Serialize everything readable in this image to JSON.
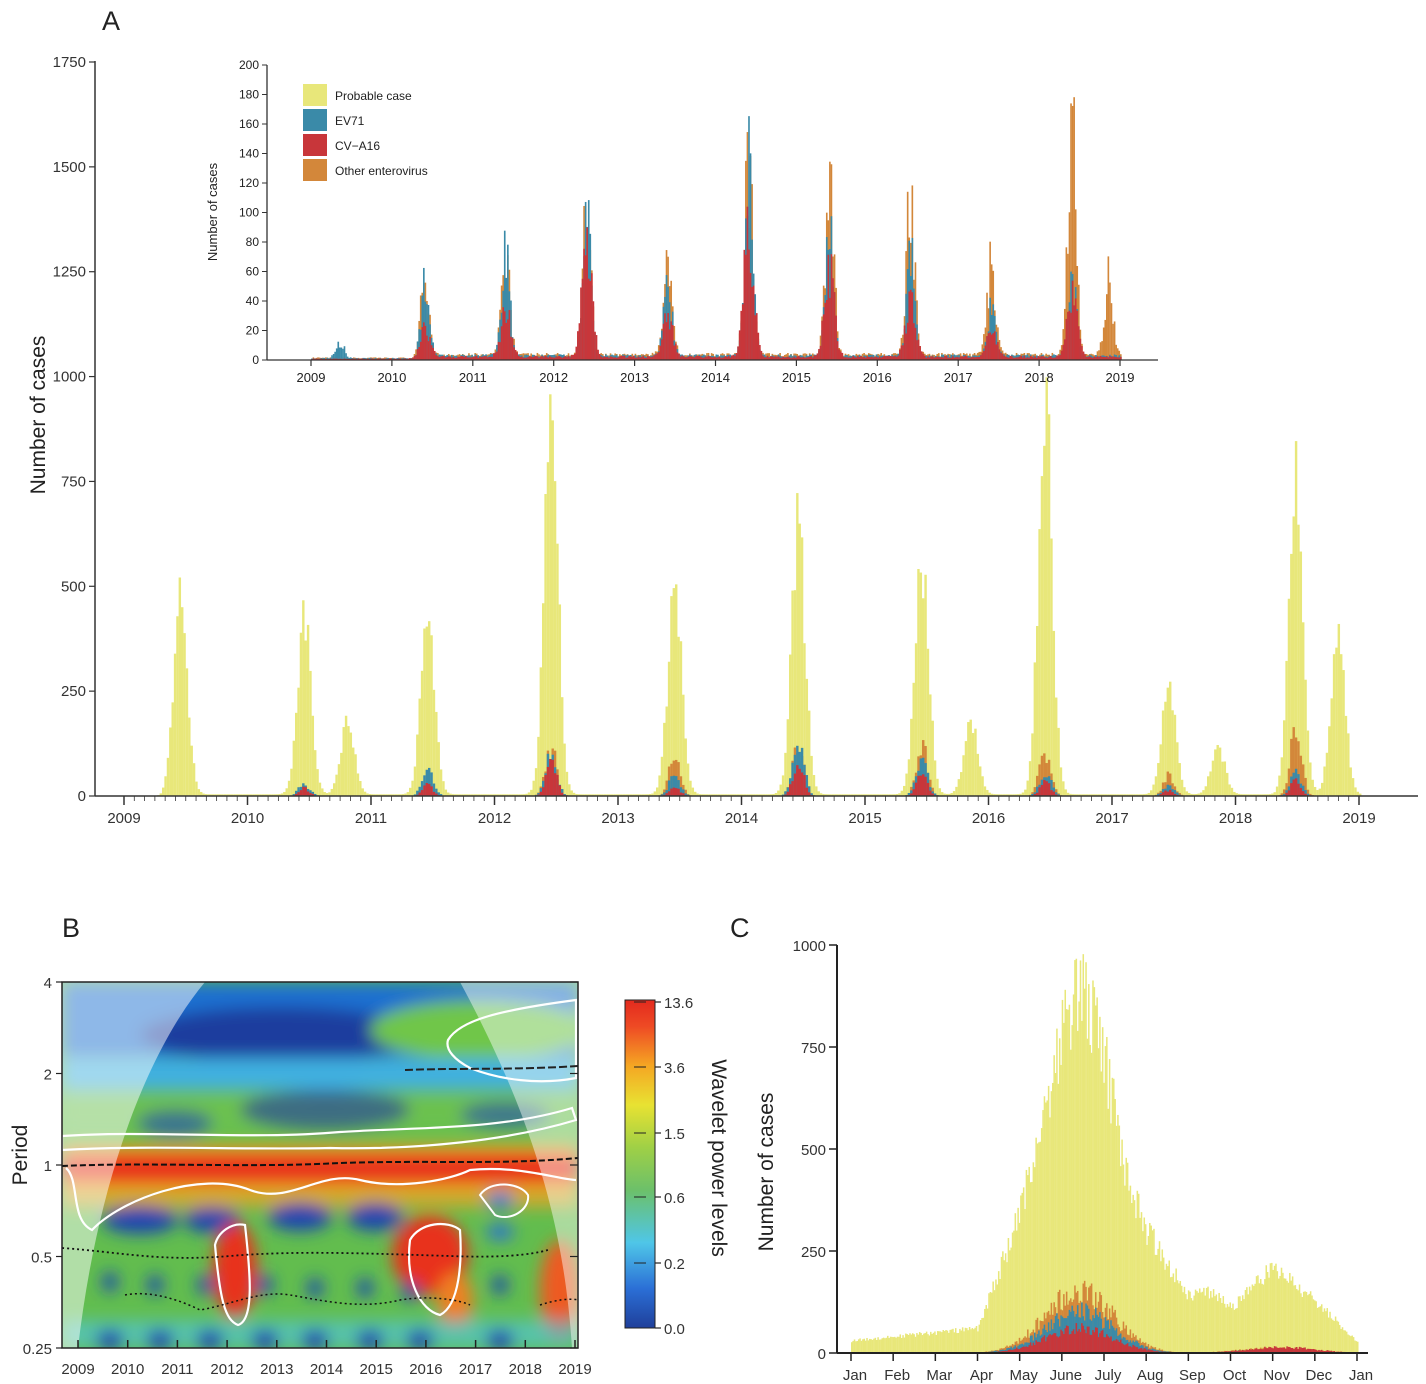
{
  "colors": {
    "probable": "#e8e77a",
    "ev71": "#3a8aa8",
    "cva16": "#c8363a",
    "other": "#d3873a"
  },
  "chart_data": [
    {
      "panel": "A",
      "type": "area",
      "xlabel": "",
      "ylabel": "Number of cases",
      "ylim": [
        0,
        1750
      ],
      "yticks": [
        0,
        250,
        500,
        750,
        1000,
        1250,
        1500,
        1750
      ],
      "xticks": [
        "2009",
        "2010",
        "2011",
        "2012",
        "2013",
        "2014",
        "2015",
        "2016",
        "2017",
        "2018",
        "2019"
      ],
      "series_peaks": [
        {
          "name": "Probable case",
          "peaks": [
            [
              2009.45,
              460
            ],
            [
              2010.45,
              420
            ],
            [
              2010.8,
              175
            ],
            [
              2011.45,
              415
            ],
            [
              2012.45,
              890
            ],
            [
              2013.45,
              490
            ],
            [
              2014.45,
              635
            ],
            [
              2015.45,
              560
            ],
            [
              2015.85,
              170
            ],
            [
              2016.45,
              955
            ],
            [
              2017.45,
              260
            ],
            [
              2017.85,
              110
            ],
            [
              2018.48,
              805
            ],
            [
              2018.82,
              410
            ]
          ]
        },
        {
          "name": "EV71",
          "peaks": [
            [
              2010.45,
              30
            ],
            [
              2011.45,
              70
            ],
            [
              2012.45,
              105
            ],
            [
              2013.45,
              55
            ],
            [
              2014.45,
              140
            ],
            [
              2015.45,
              95
            ],
            [
              2016.45,
              60
            ],
            [
              2017.45,
              25
            ],
            [
              2018.48,
              55
            ]
          ]
        },
        {
          "name": "CV-A16",
          "peaks": [
            [
              2010.45,
              20
            ],
            [
              2011.45,
              30
            ],
            [
              2012.45,
              95
            ],
            [
              2013.45,
              25
            ],
            [
              2014.45,
              95
            ],
            [
              2015.45,
              60
            ],
            [
              2016.45,
              40
            ],
            [
              2017.45,
              15
            ],
            [
              2018.48,
              40
            ]
          ]
        },
        {
          "name": "Other enterovirus",
          "peaks": [
            [
              2012.45,
              115
            ],
            [
              2013.45,
              100
            ],
            [
              2014.45,
              120
            ],
            [
              2015.45,
              130
            ],
            [
              2016.45,
              115
            ],
            [
              2017.45,
              50
            ],
            [
              2018.48,
              175
            ]
          ]
        }
      ]
    },
    {
      "panel": "A-inset",
      "type": "bar",
      "xlabel": "",
      "ylabel": "Number of cases",
      "ylim": [
        0,
        200
      ],
      "yticks": [
        0,
        20,
        40,
        60,
        80,
        100,
        120,
        140,
        160,
        180,
        200
      ],
      "xticks": [
        "2009",
        "2010",
        "2011",
        "2012",
        "2013",
        "2014",
        "2015",
        "2016",
        "2017",
        "2018",
        "2019"
      ],
      "legend": [
        "Probable case",
        "EV71",
        "CV−A16",
        "Other enterovirus"
      ],
      "legend_position": "top-left",
      "series_peaks": [
        {
          "name": "EV71",
          "peaks": [
            [
              2009.35,
              12
            ],
            [
              2010.4,
              52
            ],
            [
              2011.4,
              75
            ],
            [
              2012.4,
              112
            ],
            [
              2013.4,
              55
            ],
            [
              2014.4,
              135
            ],
            [
              2015.4,
              95
            ],
            [
              2016.4,
              75
            ],
            [
              2017.4,
              35
            ],
            [
              2018.4,
              55
            ]
          ]
        },
        {
          "name": "CV-A16",
          "peaks": [
            [
              2010.4,
              20
            ],
            [
              2011.4,
              35
            ],
            [
              2012.4,
              95
            ],
            [
              2013.4,
              30
            ],
            [
              2014.4,
              100
            ],
            [
              2015.4,
              65
            ],
            [
              2016.4,
              40
            ],
            [
              2017.4,
              20
            ],
            [
              2018.4,
              45
            ]
          ]
        },
        {
          "name": "Other enterovirus",
          "peaks": [
            [
              2010.4,
              58
            ],
            [
              2011.4,
              80
            ],
            [
              2012.4,
              120
            ],
            [
              2013.4,
              82
            ],
            [
              2014.4,
              145
            ],
            [
              2015.4,
              136
            ],
            [
              2016.4,
              123
            ],
            [
              2017.4,
              67
            ],
            [
              2018.4,
              178
            ],
            [
              2018.85,
              58
            ]
          ]
        }
      ]
    },
    {
      "panel": "B",
      "type": "heatmap",
      "xlabel": "",
      "ylabel": "Period",
      "yscale": "log2",
      "yticks": [
        "0.25",
        "0.5",
        "1",
        "2",
        "4"
      ],
      "xticks": [
        "2009",
        "2010",
        "2011",
        "2012",
        "2013",
        "2014",
        "2015",
        "2016",
        "2017",
        "2018",
        "2019"
      ],
      "colorbar_label": "Wavelet power levels",
      "colorbar_ticks": [
        "0.0",
        "0.2",
        "0.6",
        "1.5",
        "3.6",
        "13.6"
      ],
      "dominant_period": 1
    },
    {
      "panel": "C",
      "type": "area",
      "xlabel": "",
      "ylabel": "Number of cases",
      "ylim": [
        0,
        1000
      ],
      "yticks": [
        0,
        250,
        500,
        750,
        1000
      ],
      "xticks": [
        "Jan",
        "Feb",
        "Mar",
        "Apr",
        "May",
        "June",
        "July",
        "Aug",
        "Sep",
        "Oct",
        "Nov",
        "Dec",
        "Jan"
      ],
      "series_peaks": [
        {
          "name": "Probable case",
          "peaks": [
            [
              0.0,
              30
            ],
            [
              3.0,
              60
            ],
            [
              4.0,
              340
            ],
            [
              5.0,
              790
            ],
            [
              5.45,
              910
            ],
            [
              6.0,
              720
            ],
            [
              6.5,
              440
            ],
            [
              7.0,
              300
            ],
            [
              8.0,
              140
            ],
            [
              8.5,
              150
            ],
            [
              9.0,
              110
            ],
            [
              10.0,
              210
            ],
            [
              11.0,
              130
            ],
            [
              12.0,
              25
            ]
          ]
        },
        {
          "name": "Other enterovirus",
          "peaks": [
            [
              5.4,
              150
            ]
          ]
        },
        {
          "name": "EV71",
          "peaks": [
            [
              5.4,
              100
            ]
          ]
        },
        {
          "name": "CV-A16",
          "peaks": [
            [
              5.4,
              60
            ]
          ]
        }
      ]
    }
  ],
  "labels": {
    "panelA": "A",
    "panelB": "B",
    "panelC": "C",
    "a_ylabel": "Number of cases",
    "inset_ylabel": "Number of cases",
    "b_ylabel": "Period",
    "c_ylabel": "Number of cases",
    "colorbar_label": "Wavelet power levels"
  }
}
